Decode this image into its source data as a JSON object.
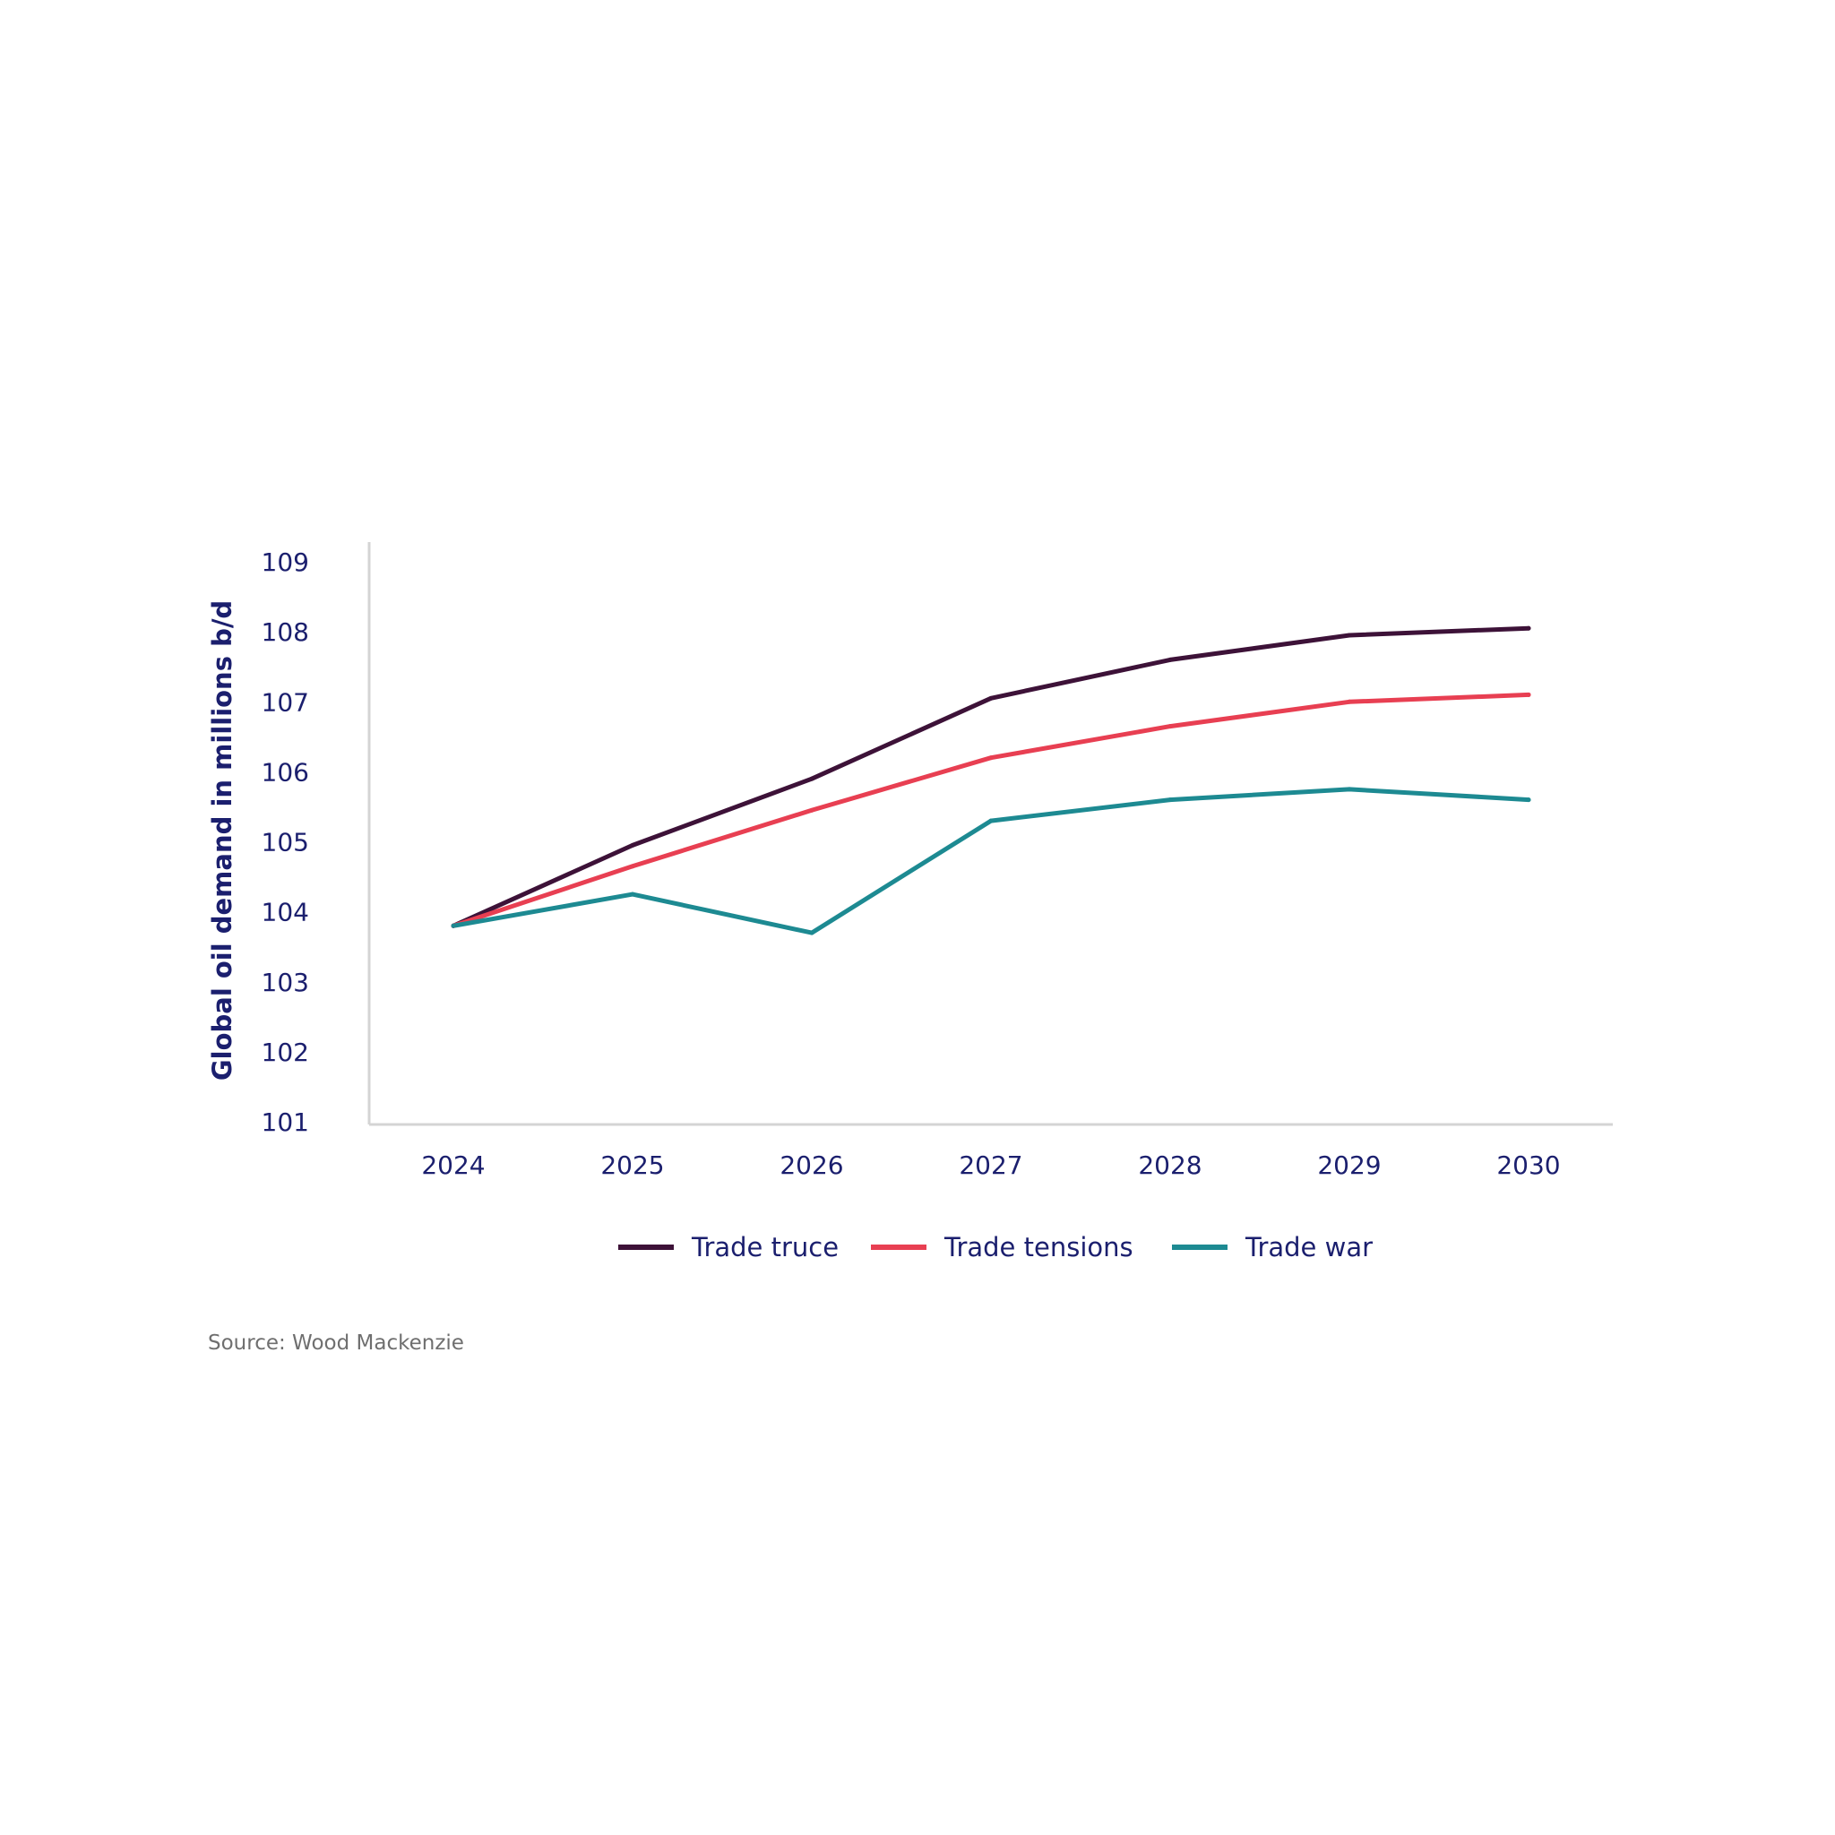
{
  "colors": {
    "axis": "#d4d4d4",
    "text": "#1b1f6e",
    "source_text": "#6f6f6f",
    "background": "#ffffff"
  },
  "chart_data": {
    "type": "line",
    "title": "",
    "xlabel": "",
    "ylabel": "Global oil demand in millions b/d",
    "x": [
      "2024",
      "2025",
      "2026",
      "2027",
      "2028",
      "2029",
      "2030"
    ],
    "ylim": [
      101,
      109
    ],
    "yticks": [
      "101",
      "102",
      "103",
      "104",
      "105",
      "106",
      "107",
      "108",
      "109"
    ],
    "grid": false,
    "legend_position": "bottom-center",
    "series": [
      {
        "name": "Trade truce",
        "color": "#3d1238",
        "values": [
          103.8,
          104.95,
          105.9,
          107.05,
          107.6,
          107.95,
          108.05
        ]
      },
      {
        "name": "Trade tensions",
        "color": "#e83f52",
        "values": [
          103.8,
          104.65,
          105.45,
          106.2,
          106.65,
          107.0,
          107.1
        ]
      },
      {
        "name": "Trade war",
        "color": "#1d8a92",
        "values": [
          103.8,
          104.25,
          103.7,
          105.3,
          105.6,
          105.75,
          105.6
        ]
      }
    ],
    "source": "Source: Wood Mackenzie"
  }
}
